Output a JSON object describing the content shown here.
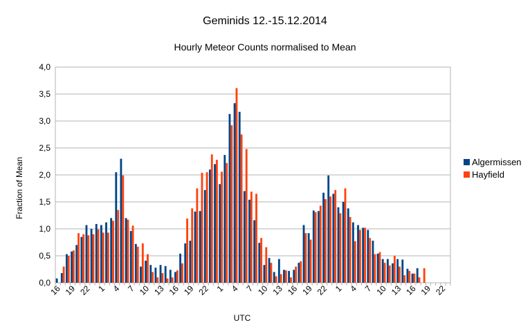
{
  "chart_data": {
    "type": "bar",
    "title": "Geminids 12.-15.12.2014",
    "subtitle": "Hourly Meteor Counts normalised to Mean",
    "xlabel": "UTC",
    "ylabel": "Fraction of Mean",
    "ylim": [
      0,
      4
    ],
    "yticks": [
      "0,0",
      "0,5",
      "1,0",
      "1,5",
      "2,0",
      "2,5",
      "3,0",
      "3,5",
      "4,0"
    ],
    "grid": true,
    "legend_position": "right",
    "categories": [
      "16",
      "17",
      "18",
      "19",
      "20",
      "21",
      "22",
      "23",
      "0",
      "1",
      "2",
      "3",
      "4",
      "5",
      "6",
      "7",
      "8",
      "9",
      "10",
      "11",
      "12",
      "13",
      "14",
      "15",
      "16",
      "17",
      "18",
      "19",
      "20",
      "21",
      "22",
      "23",
      "0",
      "1",
      "2",
      "3",
      "4",
      "5",
      "6",
      "7",
      "8",
      "9",
      "10",
      "11",
      "12",
      "13",
      "14",
      "15",
      "16",
      "17",
      "18",
      "19",
      "20",
      "21",
      "22",
      "23",
      "0",
      "1",
      "2",
      "3",
      "4",
      "5",
      "6",
      "7",
      "8",
      "9",
      "10",
      "11",
      "12",
      "13",
      "14",
      "15",
      "16",
      "17",
      "18",
      "19",
      "20",
      "21",
      "22",
      "23"
    ],
    "tick_labels": [
      "16",
      "19",
      "22",
      "1",
      "4",
      "7",
      "10",
      "13",
      "16",
      "19",
      "22",
      "1",
      "4",
      "7",
      "10",
      "13",
      "16",
      "19",
      "22",
      "1",
      "4",
      "7",
      "10",
      "13",
      "16",
      "19",
      "22"
    ],
    "series": [
      {
        "name": "Algermissen",
        "color": "#004586",
        "values": [
          0.08,
          0.18,
          0.53,
          0.58,
          0.7,
          0.85,
          1.07,
          1.0,
          1.09,
          1.07,
          1.12,
          1.2,
          2.05,
          2.3,
          1.2,
          0.96,
          0.72,
          0.3,
          0.41,
          0.33,
          0.28,
          0.33,
          0.31,
          0.24,
          0.2,
          0.54,
          0.73,
          0.78,
          1.32,
          1.33,
          1.72,
          2.1,
          2.2,
          1.83,
          2.37,
          3.13,
          3.33,
          3.17,
          1.7,
          1.54,
          1.16,
          0.74,
          0.33,
          0.46,
          0.2,
          0.44,
          0.24,
          0.22,
          0.24,
          0.37,
          1.07,
          0.92,
          1.34,
          1.33,
          1.67,
          1.99,
          1.65,
          1.4,
          1.5,
          1.38,
          1.12,
          1.07,
          1.02,
          0.98,
          0.78,
          0.54,
          0.44,
          0.44,
          0.36,
          0.44,
          0.43,
          0.26,
          0.17,
          0.27,
          0.0,
          0.0,
          0.0,
          0.0,
          0.0,
          0.0
        ]
      },
      {
        "name": "Hayfield",
        "color": "#ff420e",
        "values": [
          0.0,
          0.3,
          0.5,
          0.6,
          0.92,
          0.9,
          0.88,
          0.9,
          0.99,
          0.93,
          0.93,
          1.15,
          1.35,
          1.99,
          1.17,
          1.06,
          0.67,
          0.73,
          0.53,
          0.2,
          0.1,
          0.18,
          0.08,
          0.1,
          0.23,
          0.36,
          1.19,
          1.38,
          1.75,
          2.04,
          2.05,
          2.38,
          2.28,
          2.06,
          2.22,
          2.92,
          3.61,
          2.75,
          2.48,
          1.69,
          1.65,
          0.83,
          0.66,
          0.37,
          0.12,
          0.16,
          0.23,
          0.1,
          0.3,
          0.4,
          0.92,
          0.8,
          1.31,
          1.43,
          1.55,
          1.6,
          1.72,
          1.29,
          1.75,
          1.22,
          0.77,
          0.98,
          1.02,
          0.83,
          0.53,
          0.57,
          0.37,
          0.32,
          0.5,
          0.3,
          0.14,
          0.22,
          0.17,
          0.1,
          0.27,
          0.0,
          0.0,
          0.0,
          0.0,
          0.0
        ]
      }
    ]
  }
}
